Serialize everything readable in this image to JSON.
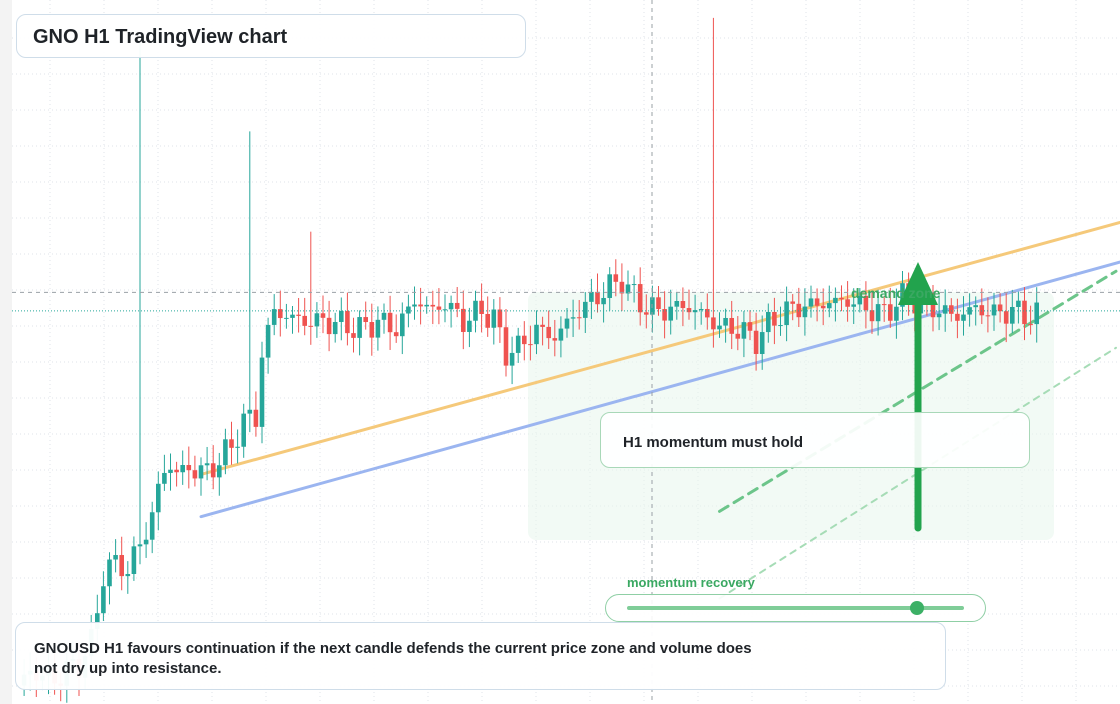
{
  "header": {
    "title": "GNO H1 TradingView chart"
  },
  "annotations": {
    "zone_label": "demand zone",
    "callout": "H1 momentum must hold",
    "momentum_label": "momentum recovery",
    "momentum_level": 0.86
  },
  "summary": {
    "text": "GNOUSD H1 favours continuation if the next candle defends the current price zone and volume does not dry up into resistance."
  },
  "colors": {
    "up": "#26a69a",
    "down": "#ef5350",
    "resistance": "#f5c97a",
    "support": "#9bb5f0",
    "accent": "#22a34d"
  },
  "chart_data": {
    "type": "candlestick",
    "timeframe": "H1",
    "symbol": "GNOUSD",
    "anchors": [
      [
        0,
        143
      ],
      [
        2,
        143.5
      ],
      [
        4,
        143.4
      ],
      [
        6,
        143.2
      ],
      [
        8,
        143.6
      ],
      [
        10,
        143.8
      ],
      [
        12,
        144.6
      ],
      [
        14,
        147.2
      ],
      [
        16,
        147.7
      ],
      [
        18,
        147.3
      ],
      [
        19,
        148.0
      ],
      [
        21,
        148.7
      ],
      [
        23,
        150.5
      ],
      [
        25,
        151.4
      ],
      [
        27,
        151.0
      ],
      [
        29,
        151.3
      ],
      [
        31,
        151.0
      ],
      [
        33,
        151.6
      ],
      [
        35,
        152.0
      ],
      [
        37,
        153.1
      ],
      [
        39,
        153.1
      ],
      [
        40,
        155.6
      ],
      [
        42,
        157.2
      ],
      [
        44,
        157.0
      ],
      [
        47,
        156.8
      ],
      [
        50,
        156.8
      ],
      [
        53,
        156.7
      ],
      [
        56,
        156.5
      ],
      [
        59,
        156.8
      ],
      [
        62,
        156.5
      ],
      [
        65,
        157.6
      ],
      [
        68,
        157.2
      ],
      [
        70,
        157.5
      ],
      [
        73,
        156.8
      ],
      [
        76,
        157.2
      ],
      [
        78,
        156.9
      ],
      [
        80,
        155.6
      ],
      [
        82,
        155.8
      ],
      [
        85,
        156.5
      ],
      [
        88,
        156.2
      ],
      [
        91,
        157.0
      ],
      [
        94,
        157.6
      ],
      [
        97,
        158.1
      ],
      [
        99,
        158.4
      ],
      [
        100,
        158.0
      ],
      [
        103,
        157.3
      ],
      [
        106,
        157.2
      ],
      [
        109,
        157.4
      ],
      [
        112,
        157.1
      ],
      [
        115,
        156.6
      ],
      [
        118,
        156.5
      ],
      [
        121,
        156.1
      ],
      [
        124,
        156.9
      ],
      [
        127,
        157.3
      ],
      [
        130,
        157.4
      ],
      [
        133,
        157.5
      ],
      [
        136,
        157.6
      ],
      [
        139,
        157.3
      ],
      [
        142,
        157.1
      ],
      [
        145,
        157.7
      ],
      [
        148,
        157.5
      ],
      [
        151,
        157.2
      ],
      [
        154,
        157.0
      ],
      [
        157,
        157.3
      ],
      [
        160,
        157.1
      ],
      [
        163,
        157.2
      ],
      [
        166,
        157.0
      ]
    ],
    "spikes": [
      {
        "index": 20,
        "high": 167.4
      },
      {
        "index": 38,
        "high": 164.0
      },
      {
        "index": 114,
        "high": 168.3
      },
      {
        "index": 48,
        "high": 160.2
      }
    ],
    "candle_count": 168,
    "price_range": [
      142.3,
      168.6
    ],
    "current_price": 157.2,
    "crosshair_price": 157.9,
    "trendlines": [
      {
        "name": "resistance",
        "start": [
          30,
          151.0
        ],
        "end": [
          183,
          160.7
        ]
      },
      {
        "name": "support",
        "start": [
          30,
          149.4
        ],
        "end": [
          183,
          159.2
        ]
      },
      {
        "name": "projected",
        "start": [
          115,
          149.6
        ],
        "end": [
          180,
          158.7
        ],
        "style": "dashed"
      },
      {
        "name": "projected-lower",
        "start": [
          115,
          146.3
        ],
        "end": [
          180,
          155.8
        ],
        "style": "dotted"
      }
    ]
  }
}
